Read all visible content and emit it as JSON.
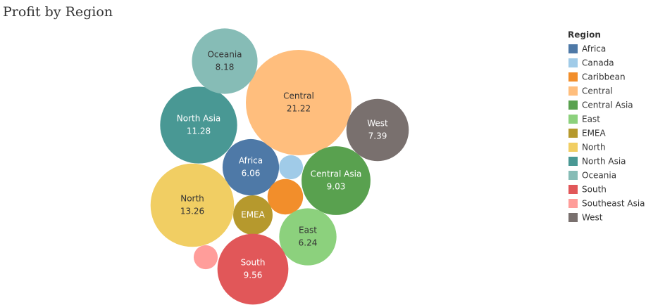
{
  "chart_data": {
    "type": "bubble",
    "title": "Profit by Region",
    "legend_title": "Region",
    "categories": [
      "Africa",
      "Canada",
      "Caribbean",
      "Central",
      "Central Asia",
      "East",
      "EMEA",
      "North",
      "North Asia",
      "Oceania",
      "South",
      "Southeast Asia",
      "West"
    ],
    "values": [
      6.06,
      1.1,
      2.4,
      21.22,
      9.03,
      6.24,
      2.95,
      13.26,
      11.28,
      8.18,
      9.56,
      1.1,
      7.39
    ],
    "colors": [
      "#4e79a7",
      "#a0cbe8",
      "#f28e2b",
      "#ffbe7d",
      "#59a14f",
      "#8cd17d",
      "#b6992d",
      "#f1ce63",
      "#499894",
      "#86bcb6",
      "#e15759",
      "#ff9d9a",
      "#79706e"
    ],
    "legend": "right"
  }
}
